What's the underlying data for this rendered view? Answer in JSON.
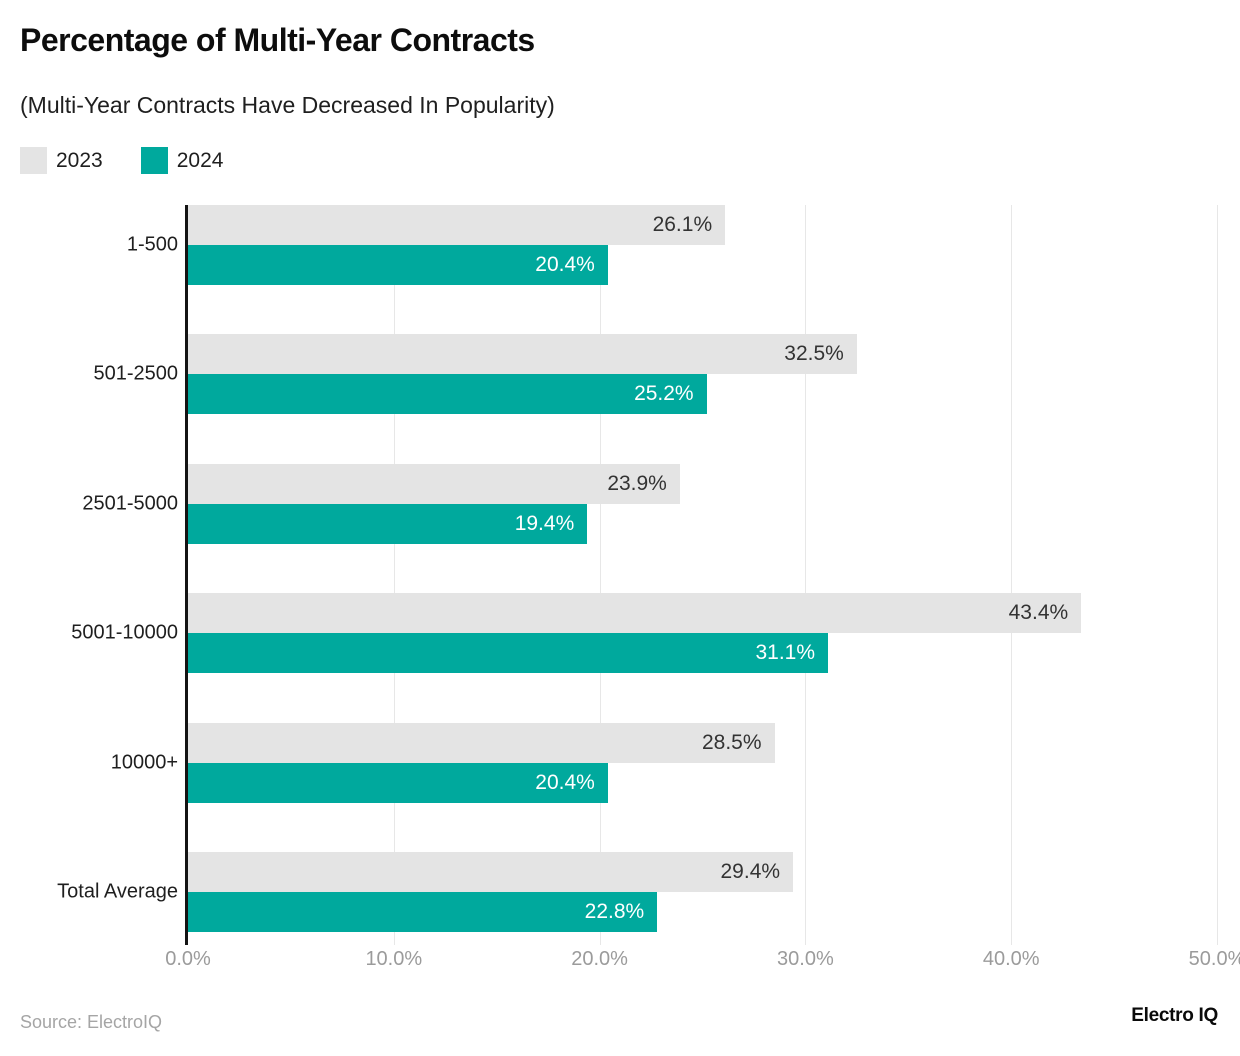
{
  "header": {
    "title": "Percentage of Multi-Year Contracts",
    "subtitle": "(Multi-Year Contracts Have Decreased In Popularity)"
  },
  "legend": [
    {
      "label": "2023",
      "color": "#e4e4e4"
    },
    {
      "label": "2024",
      "color": "#00a99d"
    }
  ],
  "chart_data": {
    "type": "bar",
    "orientation": "horizontal",
    "title": "Percentage of Multi-Year Contracts",
    "subtitle": "(Multi-Year Contracts Have Decreased In Popularity)",
    "categories": [
      "1-500",
      "501-2500",
      "2501-5000",
      "5001-10000",
      "10000+",
      "Total Average"
    ],
    "series": [
      {
        "name": "2023",
        "color": "#e4e4e4",
        "label_color": "#333333",
        "values": [
          26.1,
          32.5,
          23.9,
          43.4,
          28.5,
          29.4
        ],
        "labels": [
          "26.1%",
          "32.5%",
          "23.9%",
          "43.4%",
          "28.5%",
          "29.4%"
        ]
      },
      {
        "name": "2024",
        "color": "#00a99d",
        "label_color": "#ffffff",
        "values": [
          20.4,
          25.2,
          19.4,
          31.1,
          20.4,
          22.8
        ],
        "labels": [
          "20.4%",
          "25.2%",
          "19.4%",
          "31.1%",
          "20.4%",
          "22.8%"
        ]
      }
    ],
    "xlim": [
      0,
      50
    ],
    "x_tick_values": [
      0,
      10,
      20,
      30,
      40,
      50
    ],
    "x_tick_labels": [
      "0.0%",
      "10.0%",
      "20.0%",
      "30.0%",
      "40.0%",
      "50.0%"
    ],
    "grid": true,
    "legend_position": "top-left",
    "value_suffix": "%"
  },
  "footer": {
    "source": "Source: ElectroIQ",
    "brand": "Electro IQ"
  }
}
